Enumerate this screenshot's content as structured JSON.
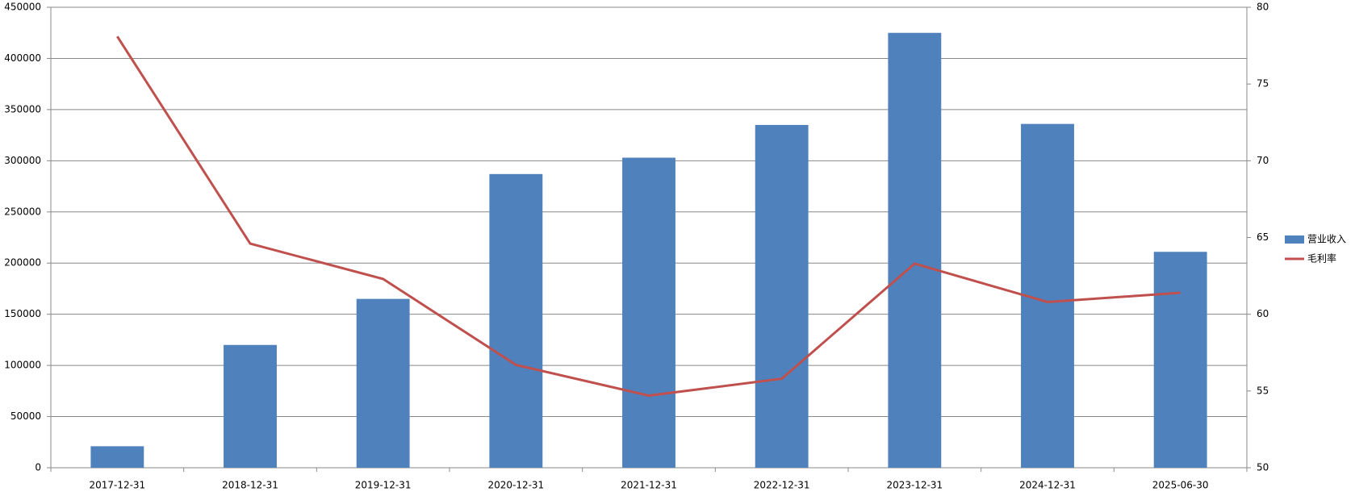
{
  "chart_data": {
    "type": "bar",
    "categories": [
      "2017-12-31",
      "2018-12-31",
      "2019-12-31",
      "2020-12-31",
      "2021-12-31",
      "2022-12-31",
      "2023-12-31",
      "2024-12-31",
      "2025-06-30"
    ],
    "series": [
      {
        "name": "营业收入",
        "type": "bar",
        "color": "#4f81bd",
        "values": [
          21000,
          120000,
          165000,
          287000,
          303000,
          335000,
          425000,
          336000,
          211000
        ]
      },
      {
        "name": "毛利率",
        "type": "line",
        "axis": "y2",
        "color": "#c0504d",
        "values": [
          78.1,
          64.6,
          62.3,
          56.7,
          54.7,
          55.8,
          63.3,
          60.8,
          61.4
        ]
      }
    ],
    "ylim": [
      0,
      450000
    ],
    "yticks": [
      0,
      50000,
      100000,
      150000,
      200000,
      250000,
      300000,
      350000,
      400000,
      450000
    ],
    "y2lim": [
      50,
      80
    ],
    "y2ticks": [
      50,
      55,
      60,
      65,
      70,
      75,
      80
    ],
    "grid": true,
    "legend": "right"
  }
}
